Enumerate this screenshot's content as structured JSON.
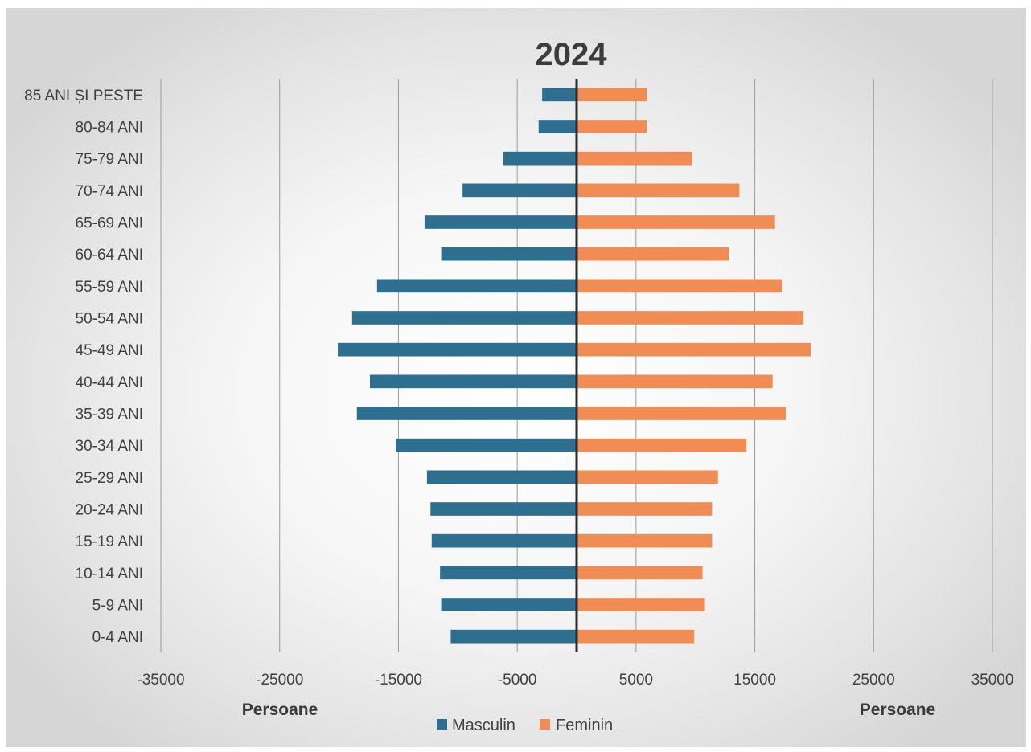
{
  "chart_data": {
    "type": "bar",
    "orientation": "horizontal",
    "chart_kind": "population-pyramid",
    "title": "2024",
    "categories": [
      "0-4 ANI",
      "5-9 ANI",
      "10-14 ANI",
      "15-19 ANI",
      "20-24 ANI",
      "25-29 ANI",
      "30-34 ANI",
      "35-39 ANI",
      "40-44 ANI",
      "45-49 ANI",
      "50-54 ANI",
      "55-59 ANI",
      "60-64 ANI",
      "65-69 ANI",
      "70-74 ANI",
      "75-79 ANI",
      "80-84 ANI",
      "85 ANI ȘI PESTE"
    ],
    "series": [
      {
        "name": "Masculin",
        "color": "#2e6e8e",
        "values": [
          -10600,
          -11400,
          -11500,
          -12200,
          -12300,
          -12600,
          -15200,
          -18500,
          -17400,
          -20100,
          -18900,
          -16800,
          -11400,
          -12800,
          -9600,
          -6200,
          -3200,
          -2900
        ]
      },
      {
        "name": "Feminin",
        "color": "#f08c54",
        "values": [
          9900,
          10800,
          10600,
          11400,
          11400,
          11900,
          14300,
          17600,
          16500,
          19700,
          19100,
          17300,
          12800,
          16700,
          13700,
          9700,
          5900,
          5900
        ]
      }
    ],
    "xlim": [
      -35000,
      35000
    ],
    "xticks": [
      -35000,
      -25000,
      -15000,
      -5000,
      5000,
      15000,
      25000,
      35000
    ],
    "xticks_labels": [
      "-35000",
      "-25000",
      "-15000",
      "-5000",
      "5000",
      "15000",
      "25000",
      "35000"
    ],
    "xlabel_left": "Persoane",
    "xlabel_right": "Persoane",
    "grid": "vertical",
    "legend_position": "bottom"
  }
}
